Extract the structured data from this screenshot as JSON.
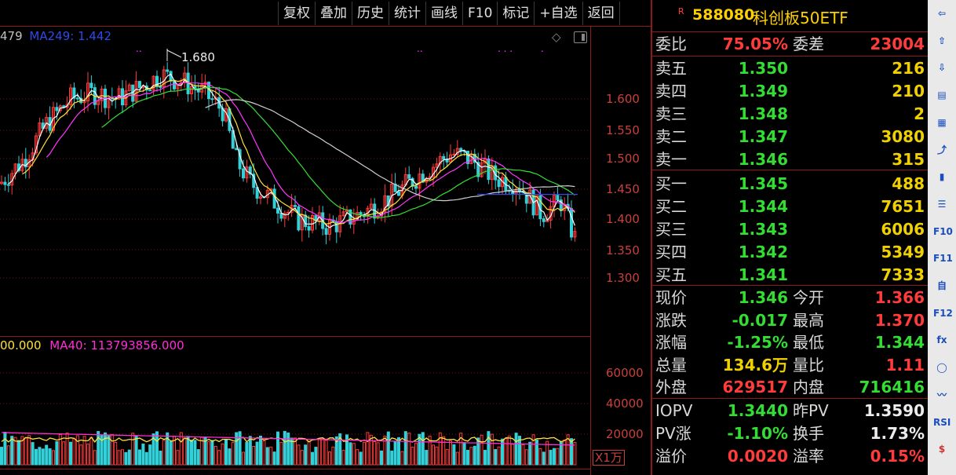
{
  "toolbar": {
    "buttons": [
      "复权",
      "叠加",
      "历史",
      "统计",
      "画线",
      "F10",
      "标记",
      "+自选",
      "返回"
    ]
  },
  "price_legend": {
    "partial": "479",
    "ma249_label": "MA249: 1.442",
    "ma249_color": "#2f49e8"
  },
  "volume_legend": {
    "partial": "00.000",
    "ma40_label": "MA40: 113793856.000",
    "ma40_color": "#ff2dd6"
  },
  "high_marker": "1.680",
  "price_axis": [
    "1.600",
    "1.550",
    "1.500",
    "1.450",
    "1.400",
    "1.350",
    "1.300"
  ],
  "volume_axis": [
    "60000",
    "40000",
    "20000"
  ],
  "volume_unit": "X1万",
  "stock": {
    "badge": "R",
    "code": "588080",
    "name": "科创板50ETF"
  },
  "quote": {
    "weibi_label": "委比",
    "weibi_value": "75.05%",
    "weicha_label": "委差",
    "weicha_value": "23004",
    "asks": [
      {
        "label": "卖五",
        "price": "1.350",
        "vol": "216"
      },
      {
        "label": "卖四",
        "price": "1.349",
        "vol": "210"
      },
      {
        "label": "卖三",
        "price": "1.348",
        "vol": "2"
      },
      {
        "label": "卖二",
        "price": "1.347",
        "vol": "3080"
      },
      {
        "label": "卖一",
        "price": "1.346",
        "vol": "315"
      }
    ],
    "bids": [
      {
        "label": "买一",
        "price": "1.345",
        "vol": "488"
      },
      {
        "label": "买二",
        "price": "1.344",
        "vol": "7651"
      },
      {
        "label": "买三",
        "price": "1.343",
        "vol": "6006"
      },
      {
        "label": "买四",
        "price": "1.342",
        "vol": "5349"
      },
      {
        "label": "买五",
        "price": "1.341",
        "vol": "7333"
      }
    ],
    "stats": [
      {
        "l1": "现价",
        "v1": "1.346",
        "c1": "green",
        "l2": "今开",
        "v2": "1.366",
        "c2": "red"
      },
      {
        "l1": "涨跌",
        "v1": "-0.017",
        "c1": "green",
        "l2": "最高",
        "v2": "1.370",
        "c2": "red"
      },
      {
        "l1": "涨幅",
        "v1": "-1.25%",
        "c1": "green",
        "l2": "最低",
        "v2": "1.344",
        "c2": "green"
      },
      {
        "l1": "总量",
        "v1": "134.6万",
        "c1": "yellow",
        "l2": "量比",
        "v2": "1.11",
        "c2": "red"
      },
      {
        "l1": "外盘",
        "v1": "629517",
        "c1": "red",
        "l2": "内盘",
        "v2": "716416",
        "c2": "green"
      }
    ],
    "iopv": [
      {
        "l1": "IOPV",
        "v1": "1.3440",
        "c1": "green",
        "l2": "昨PV",
        "v2": "1.3590",
        "c2": "white"
      },
      {
        "l1": "PV涨",
        "v1": "-1.10%",
        "c1": "green",
        "l2": "换手",
        "v2": "1.73%",
        "c2": "white"
      },
      {
        "l1": "溢价",
        "v1": "0.0020",
        "c1": "red",
        "l2": "溢率",
        "v2": "0.15%",
        "c2": "red"
      }
    ]
  },
  "side_icons": [
    "arrow-left-icon",
    "arrow-up-icon",
    "arrow-down-icon",
    "report-icon",
    "grid-icon",
    "line-chart-icon",
    "candlestick-icon",
    "list-icon",
    "f10-icon",
    "f11-icon",
    "self-select-icon",
    "f12-icon",
    "function-icon",
    "circle-icon",
    "wave-icon",
    "rsi-icon",
    "dollar-icon"
  ],
  "side_icon_glyphs": [
    "⇦",
    "⇧",
    "⇩",
    "▤",
    "▦",
    "⤴",
    "▮",
    "☰",
    "F10",
    "F11",
    "自",
    "F12",
    "fx",
    "◯",
    "〰",
    "RSI",
    "$"
  ],
  "colors": {
    "up": "#ff3b3b",
    "down": "#33dd33",
    "ma5": "#ffffff",
    "ma10": "#ffe23a",
    "ma20": "#ff35ff",
    "ma60": "#35e035",
    "ma249": "#2f49e8",
    "ma120": "#d0d0d0"
  }
}
